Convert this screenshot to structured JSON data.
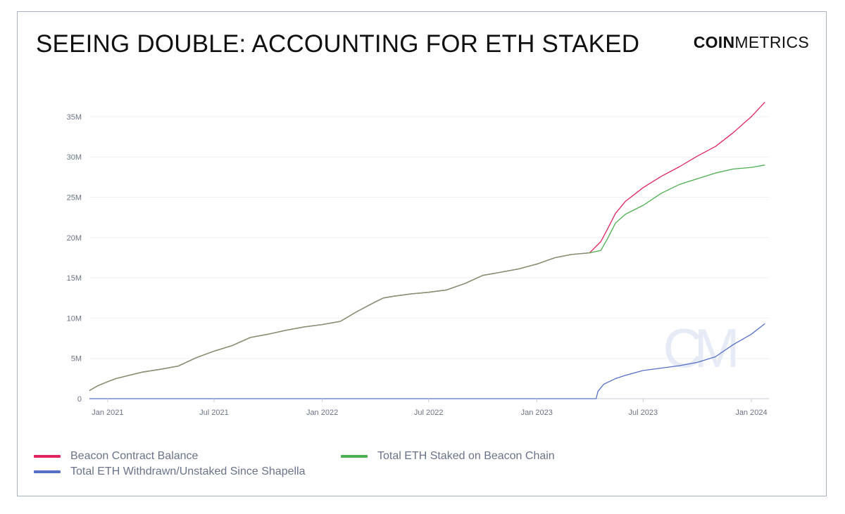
{
  "title": "SEEING DOUBLE: ACCOUNTING FOR ETH STAKED",
  "brand": {
    "bold": "COIN",
    "light": "METRICS"
  },
  "watermark": "CM",
  "chart_data": {
    "type": "line",
    "title": "SEEING DOUBLE: ACCOUNTING FOR ETH STAKED",
    "xlabel": "",
    "ylabel": "",
    "x_range": [
      "2020-12-01",
      "2024-01-31"
    ],
    "ylim": [
      0,
      37000000
    ],
    "y_ticks": [
      0,
      5000000,
      10000000,
      15000000,
      20000000,
      25000000,
      30000000,
      35000000
    ],
    "y_tick_labels": [
      "0",
      "5M",
      "10M",
      "15M",
      "20M",
      "25M",
      "30M",
      "35M"
    ],
    "x_ticks": [
      "2021-01-01",
      "2021-07-01",
      "2022-01-01",
      "2022-07-01",
      "2023-01-01",
      "2023-07-01",
      "2024-01-01"
    ],
    "x_tick_labels": [
      "Jan 2021",
      "Jul 2021",
      "Jan 2022",
      "Jul 2022",
      "Jan 2023",
      "Jul 2023",
      "Jan 2024"
    ],
    "grid": true,
    "legend_position": "bottom",
    "series": [
      {
        "name": "Beacon Contract Balance",
        "color": "#e0245e",
        "x": [
          "2020-12-01",
          "2020-12-15",
          "2021-01-01",
          "2021-01-15",
          "2021-02-01",
          "2021-03-01",
          "2021-04-01",
          "2021-05-01",
          "2021-06-01",
          "2021-07-01",
          "2021-08-01",
          "2021-09-01",
          "2021-10-01",
          "2021-11-01",
          "2021-12-01",
          "2022-01-01",
          "2022-02-01",
          "2022-03-01",
          "2022-04-01",
          "2022-04-15",
          "2022-05-01",
          "2022-06-01",
          "2022-07-01",
          "2022-08-01",
          "2022-09-01",
          "2022-10-01",
          "2022-11-01",
          "2022-12-01",
          "2023-01-01",
          "2023-02-01",
          "2023-03-01",
          "2023-04-01",
          "2023-04-20",
          "2023-05-01",
          "2023-05-15",
          "2023-06-01",
          "2023-07-01",
          "2023-08-01",
          "2023-09-01",
          "2023-10-01",
          "2023-11-01",
          "2023-12-01",
          "2024-01-01",
          "2024-01-24"
        ],
        "y": [
          1000000,
          1600000,
          2100000,
          2500000,
          2800000,
          3300000,
          3650000,
          4050000,
          5100000,
          5900000,
          6600000,
          7600000,
          8000000,
          8500000,
          8900000,
          9200000,
          9600000,
          10800000,
          12000000,
          12500000,
          12700000,
          13000000,
          13200000,
          13500000,
          14300000,
          15300000,
          15700000,
          16100000,
          16700000,
          17500000,
          17900000,
          18100000,
          19500000,
          21000000,
          23000000,
          24500000,
          26200000,
          27600000,
          28800000,
          30100000,
          31300000,
          33000000,
          35000000,
          36800000
        ]
      },
      {
        "name": "Total ETH Staked on Beacon Chain",
        "color": "#4caf50",
        "x": [
          "2020-12-01",
          "2020-12-15",
          "2021-01-01",
          "2021-01-15",
          "2021-02-01",
          "2021-03-01",
          "2021-04-01",
          "2021-05-01",
          "2021-06-01",
          "2021-07-01",
          "2021-08-01",
          "2021-09-01",
          "2021-10-01",
          "2021-11-01",
          "2021-12-01",
          "2022-01-01",
          "2022-02-01",
          "2022-03-01",
          "2022-04-01",
          "2022-04-15",
          "2022-05-01",
          "2022-06-01",
          "2022-07-01",
          "2022-08-01",
          "2022-09-01",
          "2022-10-01",
          "2022-11-01",
          "2022-12-01",
          "2023-01-01",
          "2023-02-01",
          "2023-03-01",
          "2023-04-01",
          "2023-04-20",
          "2023-05-01",
          "2023-05-15",
          "2023-06-01",
          "2023-07-01",
          "2023-08-01",
          "2023-09-01",
          "2023-10-01",
          "2023-11-01",
          "2023-12-01",
          "2024-01-01",
          "2024-01-24"
        ],
        "y": [
          1000000,
          1600000,
          2100000,
          2500000,
          2800000,
          3300000,
          3650000,
          4050000,
          5100000,
          5900000,
          6600000,
          7600000,
          8000000,
          8500000,
          8900000,
          9200000,
          9600000,
          10800000,
          12000000,
          12500000,
          12700000,
          13000000,
          13200000,
          13500000,
          14300000,
          15300000,
          15700000,
          16100000,
          16700000,
          17500000,
          17900000,
          18100000,
          18400000,
          19800000,
          21800000,
          22900000,
          24000000,
          25500000,
          26600000,
          27300000,
          28000000,
          28500000,
          28700000,
          29000000
        ]
      },
      {
        "name": "Total ETH Withdrawn/Unstaked Since Shapella",
        "color": "#5470c6",
        "x": [
          "2020-12-01",
          "2023-04-12",
          "2023-04-15",
          "2023-04-25",
          "2023-05-15",
          "2023-06-01",
          "2023-07-01",
          "2023-08-01",
          "2023-09-01",
          "2023-10-01",
          "2023-11-01",
          "2023-12-01",
          "2024-01-01",
          "2024-01-24"
        ],
        "y": [
          0,
          0,
          900000,
          1800000,
          2500000,
          2900000,
          3500000,
          3800000,
          4100000,
          4500000,
          5200000,
          6700000,
          8000000,
          9300000
        ]
      }
    ]
  }
}
